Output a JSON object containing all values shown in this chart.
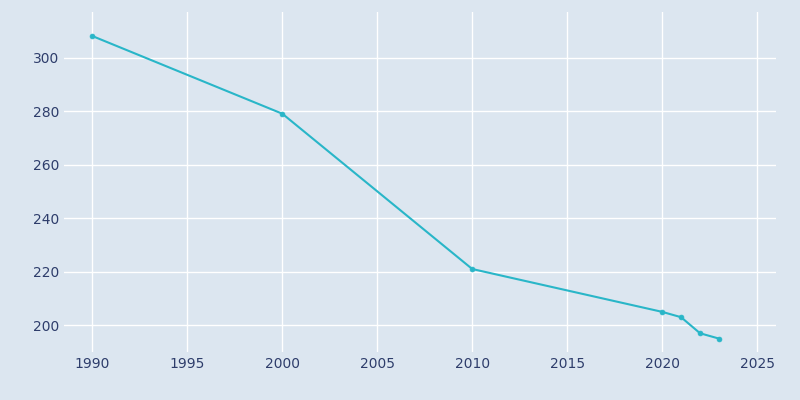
{
  "years": [
    1990,
    2000,
    2010,
    2020,
    2021,
    2022,
    2023
  ],
  "population": [
    308,
    279,
    221,
    205,
    203,
    197,
    195
  ],
  "line_color": "#29b6c8",
  "marker_color": "#29b6c8",
  "bg_color": "#dce6f0",
  "plot_bg_color": "#dce6f0",
  "grid_color": "#ffffff",
  "tick_label_color": "#2e3d6b",
  "xlim": [
    1988.5,
    2026
  ],
  "ylim": [
    190,
    317
  ],
  "xticks": [
    1990,
    1995,
    2000,
    2005,
    2010,
    2015,
    2020,
    2025
  ],
  "yticks": [
    200,
    220,
    240,
    260,
    280,
    300
  ],
  "figsize": [
    8.0,
    4.0
  ],
  "dpi": 100
}
